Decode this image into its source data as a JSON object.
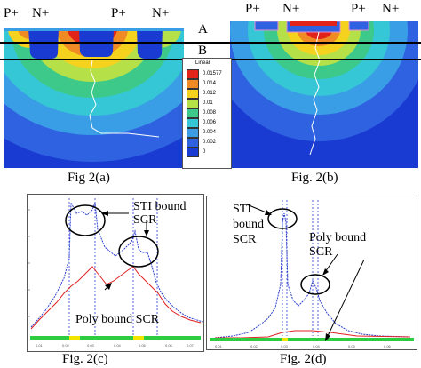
{
  "top_labels": {
    "left": [
      "P+",
      "N+",
      "P+",
      "N+"
    ],
    "right": [
      "P+",
      "N+",
      "P+",
      "N+"
    ],
    "cut_a": "A",
    "cut_b": "B"
  },
  "legend": {
    "title": "Linear",
    "entries": [
      {
        "value": "0.01577",
        "color": "#e2231a"
      },
      {
        "value": "0.014",
        "color": "#f08a24"
      },
      {
        "value": "0.012",
        "color": "#f5d21e"
      },
      {
        "value": "0.01",
        "color": "#b5e048"
      },
      {
        "value": "0.008",
        "color": "#3cc98a"
      },
      {
        "value": "0.006",
        "color": "#35c7d6"
      },
      {
        "value": "0.004",
        "color": "#3a9ee6"
      },
      {
        "value": "0.002",
        "color": "#2f62e0"
      },
      {
        "value": "0",
        "color": "#1a3bd1"
      }
    ]
  },
  "captions": {
    "a": "Fig 2(a)",
    "b": "Fig. 2(b)",
    "c": "Fig. 2(c)",
    "d": "Fig. 2(d)"
  },
  "annotations": {
    "c_sti": [
      "STI bound",
      "SCR"
    ],
    "c_poly": "Poly bound SCR",
    "d_sti": [
      "STI",
      "bound",
      "SCR"
    ],
    "d_poly": [
      "Poly bound",
      "SCR"
    ]
  },
  "colors": {
    "red_curve": "#e02020",
    "blue_curve": "#2a3fd0",
    "green_base": "#2ecc40",
    "yellow_base": "#f2e600"
  }
}
